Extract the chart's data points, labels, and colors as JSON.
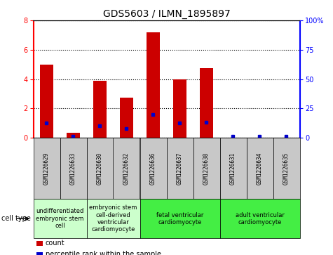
{
  "title": "GDS5603 / ILMN_1895897",
  "samples": [
    "GSM1226629",
    "GSM1226633",
    "GSM1226630",
    "GSM1226632",
    "GSM1226636",
    "GSM1226637",
    "GSM1226638",
    "GSM1226631",
    "GSM1226634",
    "GSM1226635"
  ],
  "counts": [
    5.0,
    0.35,
    3.9,
    2.75,
    7.2,
    4.0,
    4.75,
    0.0,
    0.0,
    0.0
  ],
  "percentiles": [
    12.5,
    1.5,
    10.0,
    7.5,
    20.0,
    12.5,
    13.0,
    1.5,
    1.5,
    1.5
  ],
  "ylim_left": [
    0,
    8
  ],
  "ylim_right": [
    0,
    100
  ],
  "yticks_left": [
    0,
    2,
    4,
    6,
    8
  ],
  "yticks_right": [
    0,
    25,
    50,
    75,
    100
  ],
  "ytick_labels_right": [
    "0",
    "25",
    "50",
    "75",
    "100%"
  ],
  "bar_color": "#cc0000",
  "dot_color": "#0000cc",
  "bg_color": "#c8c8c8",
  "cell_type_groups": [
    {
      "label": "undifferentiated\nembryonic stem\ncell",
      "indices": [
        0,
        1
      ],
      "color": "#ccffcc"
    },
    {
      "label": "embryonic stem\ncell-derived\nventricular\ncardiomyocyte",
      "indices": [
        2,
        3
      ],
      "color": "#ccffcc"
    },
    {
      "label": "fetal ventricular\ncardiomyocyte",
      "indices": [
        4,
        5,
        6
      ],
      "color": "#44ee44"
    },
    {
      "label": "adult ventricular\ncardiomyocyte",
      "indices": [
        7,
        8,
        9
      ],
      "color": "#44ee44"
    }
  ],
  "cell_type_label": "cell type",
  "legend_count_label": "count",
  "legend_percentile_label": "percentile rank within the sample",
  "title_fontsize": 10,
  "tick_fontsize": 7,
  "sample_fontsize": 5.5,
  "group_fontsize": 6,
  "legend_fontsize": 7
}
